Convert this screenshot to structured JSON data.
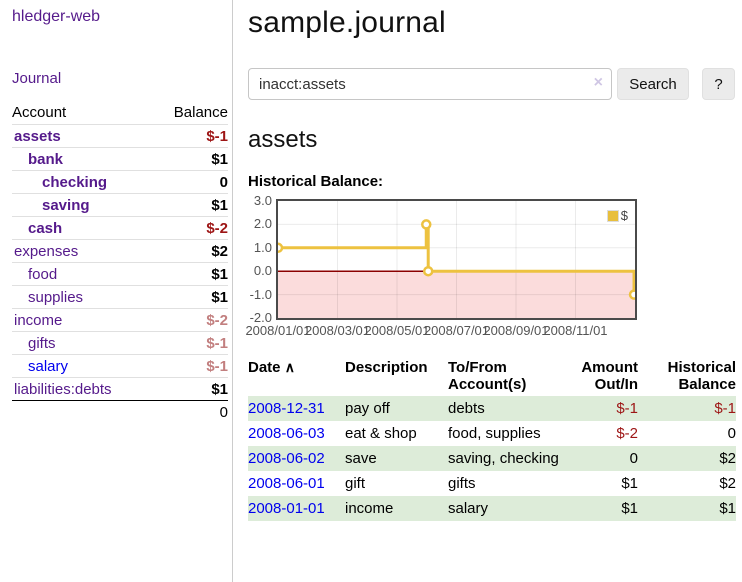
{
  "app": {
    "title": "hledger-web"
  },
  "sidebar": {
    "journal_link": "Journal",
    "accounts": {
      "col_account": "Account",
      "col_balance": "Balance",
      "rows": [
        {
          "name": "assets",
          "depth": 1,
          "bold": true,
          "balance": "$-1",
          "balance_class": "neg"
        },
        {
          "name": "bank",
          "depth": 2,
          "bold": true,
          "balance": "$1",
          "balance_class": ""
        },
        {
          "name": "checking",
          "depth": 3,
          "bold": true,
          "balance": "0",
          "balance_class": ""
        },
        {
          "name": "saving",
          "depth": 3,
          "bold": true,
          "balance": "$1",
          "balance_class": ""
        },
        {
          "name": "cash",
          "depth": 2,
          "bold": true,
          "balance": "$-2",
          "balance_class": "neg"
        },
        {
          "name": "expenses",
          "depth": 1,
          "bold": false,
          "balance": "$2",
          "balance_class": ""
        },
        {
          "name": "food",
          "depth": 2,
          "bold": false,
          "balance": "$1",
          "balance_class": ""
        },
        {
          "name": "supplies",
          "depth": 2,
          "bold": false,
          "balance": "$1",
          "balance_class": ""
        },
        {
          "name": "income",
          "depth": 1,
          "bold": false,
          "balance": "$-2",
          "balance_class": "neg-faded"
        },
        {
          "name": "gifts",
          "depth": 2,
          "bold": false,
          "balance": "$-1",
          "balance_class": "neg-faded"
        },
        {
          "name": "salary",
          "depth": 2,
          "bold": false,
          "balance": "$-1",
          "balance_class": "neg-faded",
          "unvisited": true
        },
        {
          "name": "liabilities:debts",
          "depth": 1,
          "bold": false,
          "balance": "$1",
          "balance_class": ""
        }
      ],
      "total": "0"
    }
  },
  "header": {
    "title": "sample.journal"
  },
  "search": {
    "value": "inacct:assets",
    "clear_icon": "×",
    "button_label": "Search",
    "help_label": "?"
  },
  "account_page": {
    "heading": "assets",
    "chart_label": "Historical Balance:"
  },
  "chart_data": {
    "type": "line",
    "step": true,
    "title": "Historical Balance:",
    "series": [
      {
        "name": "$",
        "color": "#edc240",
        "points": [
          [
            "2008-01-01",
            1
          ],
          [
            "2008-06-01",
            2
          ],
          [
            "2008-06-03",
            0
          ],
          [
            "2008-12-31",
            -1
          ]
        ]
      }
    ],
    "x_ticks": [
      "2008/01/01",
      "2008/03/01",
      "2008/05/01",
      "2008/07/01",
      "2008/09/01",
      "2008/11/01"
    ],
    "x_range": [
      "2008-01-01",
      "2009-01-01"
    ],
    "y_ticks": [
      "3.0",
      "2.0",
      "1.0",
      "0.0",
      "-1.0",
      "-2.0"
    ],
    "ylim": [
      -2,
      3
    ],
    "grid": true,
    "negative_region_color": "#fbdcdc",
    "zero_line_color": "#8b0000",
    "legend": {
      "label": "$",
      "position": "top-right"
    }
  },
  "register": {
    "columns": {
      "date": "Date",
      "description": "Description",
      "accounts": "To/From Account(s)",
      "amount": "Amount Out/In",
      "balance": "Historical Balance"
    },
    "sort_icon": "∧",
    "rows": [
      {
        "date": "2008-12-31",
        "description": "pay off",
        "accounts": "debts",
        "amount": "$-1",
        "amount_neg": true,
        "balance": "$-1",
        "balance_neg": true
      },
      {
        "date": "2008-06-03",
        "description": "eat & shop",
        "accounts": "food, supplies",
        "amount": "$-2",
        "amount_neg": true,
        "balance": "0",
        "balance_neg": false
      },
      {
        "date": "2008-06-02",
        "description": "save",
        "accounts": "saving, checking",
        "amount": "0",
        "amount_neg": false,
        "balance": "$2",
        "balance_neg": false
      },
      {
        "date": "2008-06-01",
        "description": "gift",
        "accounts": "gifts",
        "amount": "$1",
        "amount_neg": false,
        "balance": "$2",
        "balance_neg": false
      },
      {
        "date": "2008-01-01",
        "description": "income",
        "accounts": "salary",
        "amount": "$1",
        "amount_neg": false,
        "balance": "$1",
        "balance_neg": false
      }
    ]
  },
  "colors": {
    "link_visited_purple": "#551A8B",
    "link_blue": "#0000EE",
    "negative_red": "#9d1515",
    "negative_faded": "#c27f7f",
    "zebra_green": "#ddecd9",
    "chart_line_gold": "#edc240"
  }
}
